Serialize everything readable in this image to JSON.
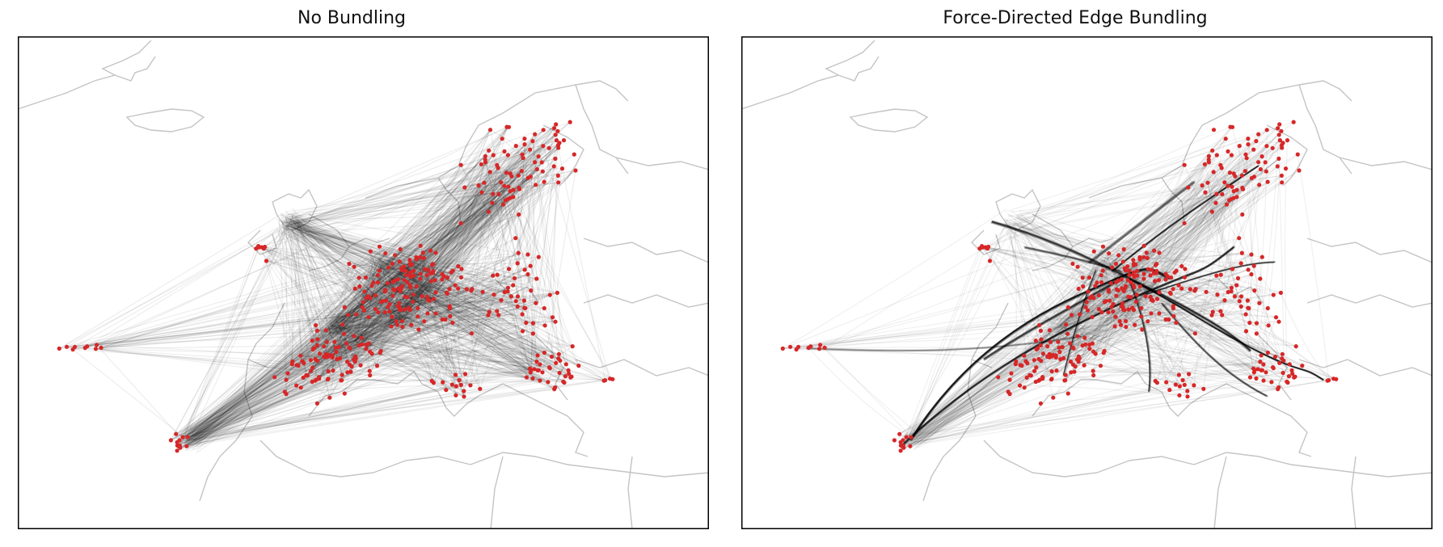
{
  "chart_data": [
    {
      "type": "map",
      "title": "No Bundling",
      "legend": null,
      "node_color": "#d62728",
      "edge_color": "#000000",
      "coast_color": "#c4c4c4"
    },
    {
      "type": "map",
      "title": "Force-Directed Edge Bundling",
      "legend": null,
      "node_color": "#d62728",
      "edge_color": "#000000",
      "coast_color": "#c4c4c4"
    }
  ]
}
